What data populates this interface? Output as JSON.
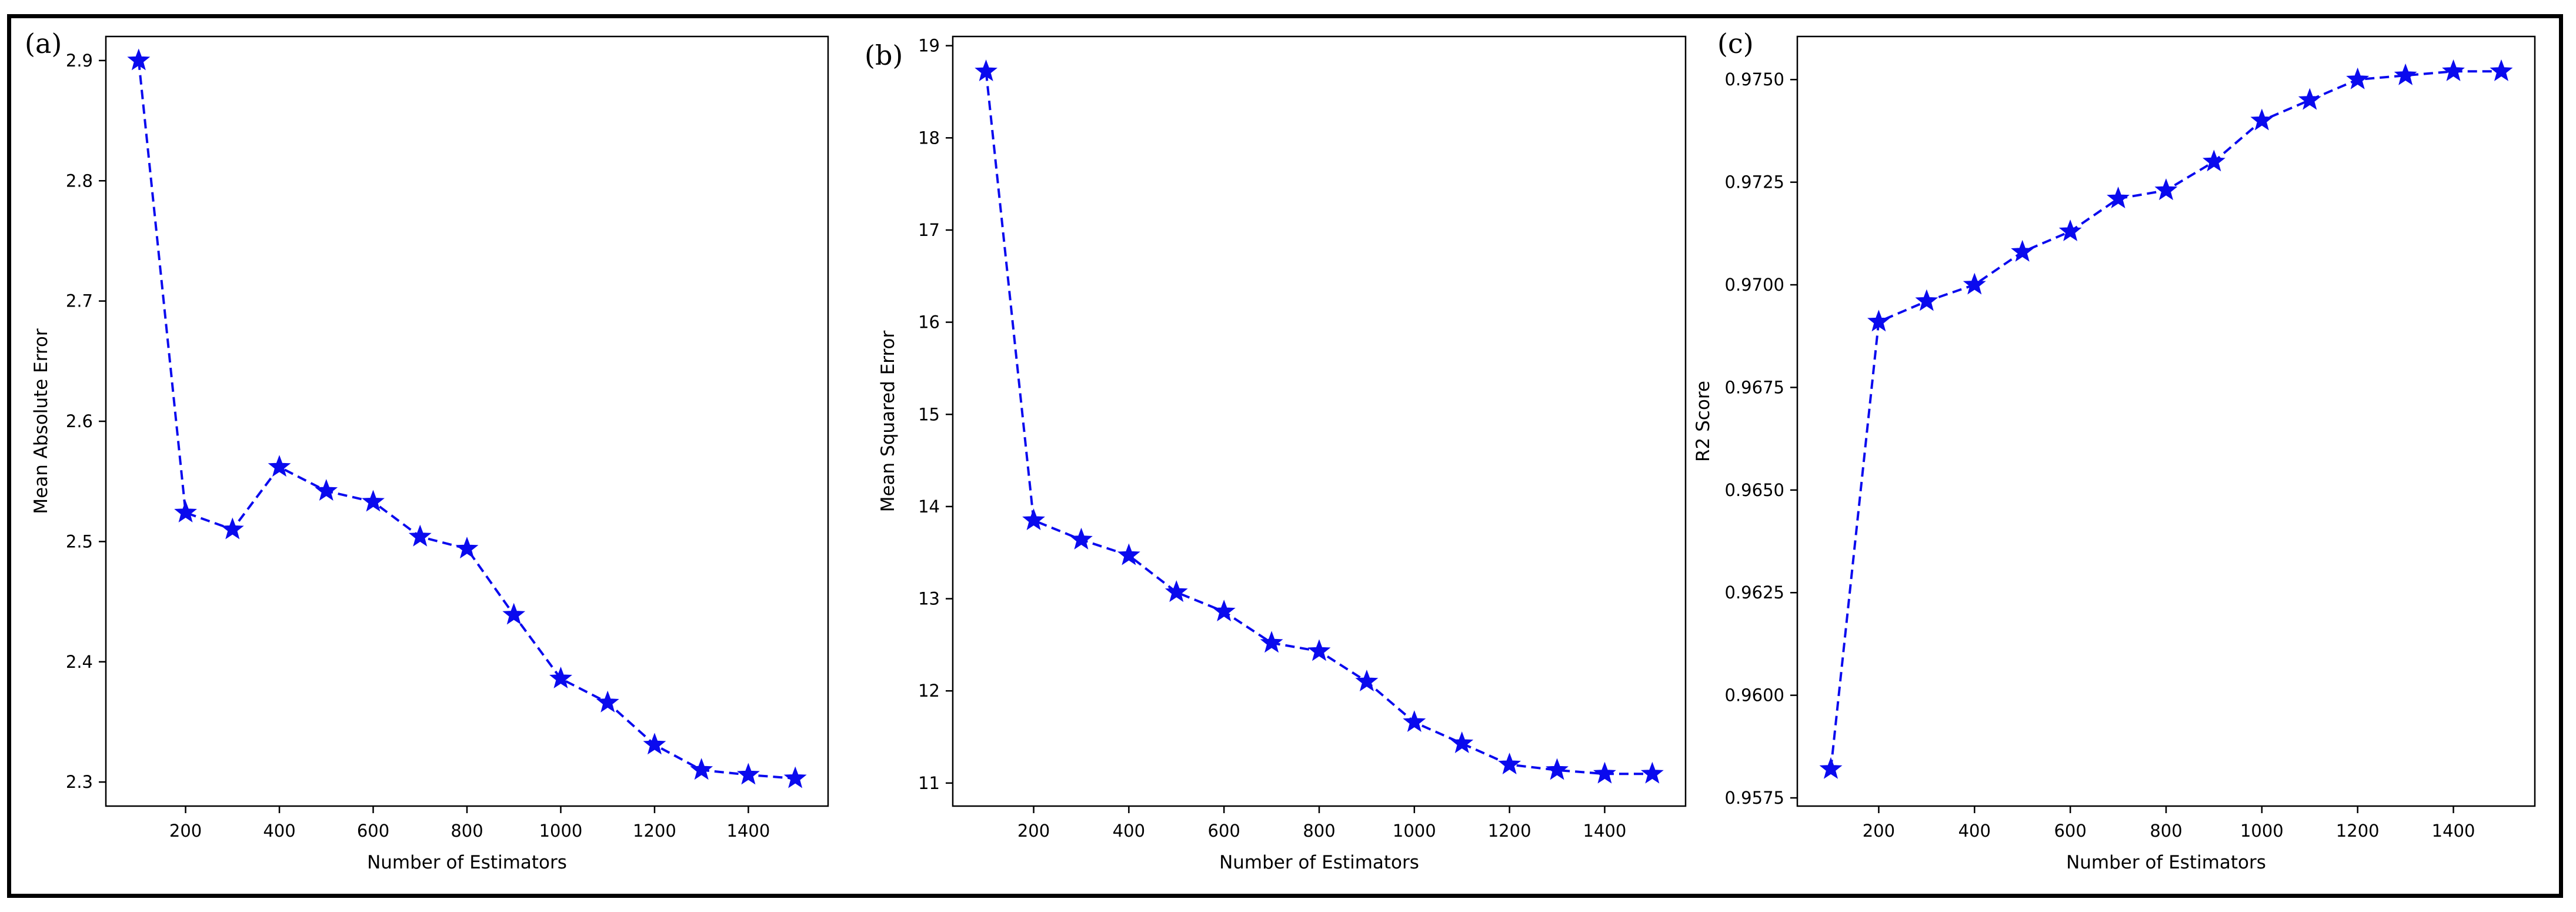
{
  "chart_data": [
    {
      "type": "line",
      "panel_label": "(a)",
      "title": "",
      "xlabel": "Number of Estimators",
      "ylabel": "Mean Absolute Error",
      "x": [
        100,
        200,
        300,
        400,
        500,
        600,
        700,
        800,
        900,
        1000,
        1100,
        1200,
        1300,
        1400,
        1500
      ],
      "series": [
        {
          "name": "MAE",
          "values": [
            2.9,
            2.524,
            2.51,
            2.562,
            2.542,
            2.533,
            2.504,
            2.494,
            2.439,
            2.386,
            2.366,
            2.331,
            2.31,
            2.306,
            2.303
          ]
        }
      ],
      "xlim": [
        30,
        1570
      ],
      "ylim": [
        2.28,
        2.92
      ],
      "xticks": [
        200,
        400,
        600,
        800,
        1000,
        1200,
        1400
      ],
      "yticks": [
        2.3,
        2.4,
        2.5,
        2.6,
        2.7,
        2.8,
        2.9
      ],
      "ytick_labels": [
        "2.3",
        "2.4",
        "2.5",
        "2.6",
        "2.7",
        "2.8",
        "2.9"
      ],
      "style": {
        "color": "#0a0aee",
        "linestyle": "dashed",
        "marker": "star"
      }
    },
    {
      "type": "line",
      "panel_label": "(b)",
      "title": "",
      "xlabel": "Number of Estimators",
      "ylabel": "Mean Squared Error",
      "x": [
        100,
        200,
        300,
        400,
        500,
        600,
        700,
        800,
        900,
        1000,
        1100,
        1200,
        1300,
        1400,
        1500
      ],
      "series": [
        {
          "name": "MSE",
          "values": [
            18.72,
            13.85,
            13.64,
            13.47,
            13.07,
            12.86,
            12.52,
            12.43,
            12.1,
            11.66,
            11.43,
            11.2,
            11.14,
            11.1,
            11.1
          ]
        }
      ],
      "xlim": [
        30,
        1570
      ],
      "ylim": [
        10.75,
        19.1
      ],
      "xticks": [
        200,
        400,
        600,
        800,
        1000,
        1200,
        1400
      ],
      "yticks": [
        11,
        12,
        13,
        14,
        15,
        16,
        17,
        18,
        19
      ],
      "ytick_labels": [
        "11",
        "12",
        "13",
        "14",
        "15",
        "16",
        "17",
        "18",
        "19"
      ],
      "style": {
        "color": "#0a0aee",
        "linestyle": "dashed",
        "marker": "star"
      }
    },
    {
      "type": "line",
      "panel_label": "(c)",
      "title": "",
      "xlabel": "Number of Estimators",
      "ylabel": "R2 Score",
      "x": [
        100,
        200,
        300,
        400,
        500,
        600,
        700,
        800,
        900,
        1000,
        1100,
        1200,
        1300,
        1400,
        1500
      ],
      "series": [
        {
          "name": "R2",
          "values": [
            0.9582,
            0.9691,
            0.9696,
            0.97,
            0.9708,
            0.9713,
            0.9721,
            0.9723,
            0.973,
            0.974,
            0.9745,
            0.975,
            0.9751,
            0.9752,
            0.9752
          ]
        }
      ],
      "xlim": [
        30,
        1570
      ],
      "ylim": [
        0.9573,
        0.97605
      ],
      "xticks": [
        200,
        400,
        600,
        800,
        1000,
        1200,
        1400
      ],
      "yticks": [
        0.9575,
        0.96,
        0.9625,
        0.965,
        0.9675,
        0.97,
        0.9725,
        0.975
      ],
      "ytick_labels": [
        "0.9575",
        "0.9600",
        "0.9625",
        "0.9650",
        "0.9675",
        "0.9700",
        "0.9725",
        "0.9750"
      ],
      "style": {
        "color": "#0a0aee",
        "linestyle": "dashed",
        "marker": "star"
      }
    }
  ]
}
